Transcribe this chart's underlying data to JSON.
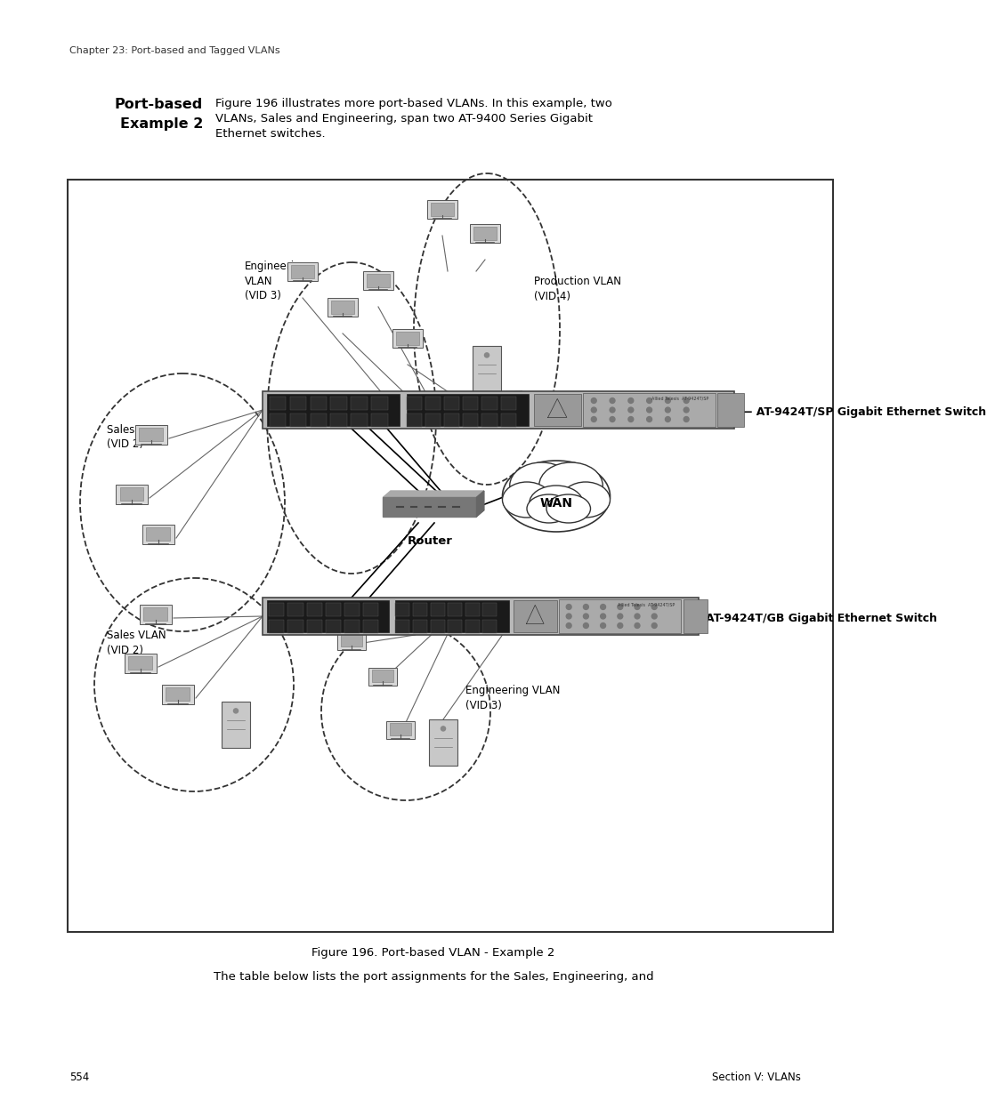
{
  "page_header": "Chapter 23: Port-based and Tagged VLANs",
  "section_title_bold": "Port-based\nExample 2",
  "section_desc": "Figure 196 illustrates more port-based VLANs. In this example, two\nVLANs, Sales and Engineering, span two AT-9400 Series Gigabit\nEthernet switches.",
  "figure_caption": "Figure 196. Port-based VLAN - Example 2",
  "bottom_text": "The table below lists the port assignments for the Sales, Engineering, and",
  "page_num_left": "554",
  "page_num_right": "Section V: VLANs",
  "switch1_label": "AT-9424T/SP Gigabit Ethernet Switch",
  "switch2_label": "AT-9424T/GB Gigabit Ethernet Switch",
  "router_label": "Router",
  "wan_label": "WAN",
  "bg_color": "#ffffff"
}
